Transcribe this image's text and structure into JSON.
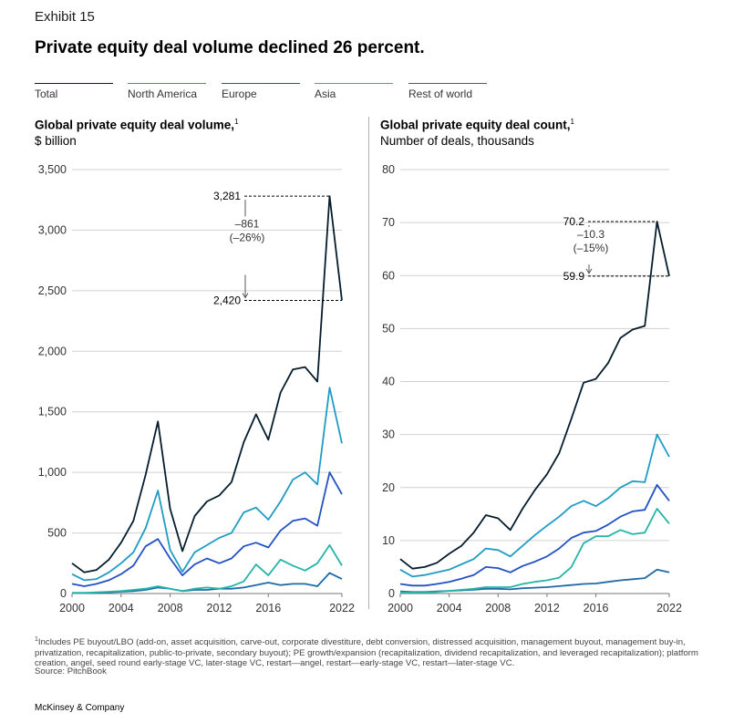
{
  "header": {
    "exhibit": "Exhibit 15",
    "title": "Private equity deal volume declined 26 percent."
  },
  "legend": [
    {
      "label": "Total",
      "color": "#051c2c"
    },
    {
      "label": "North America",
      "color": "#1f9cc4"
    },
    {
      "label": "Europe",
      "color": "#2251c4"
    },
    {
      "label": "Asia",
      "color": "#25b5a8"
    },
    {
      "label": "Rest of world",
      "color": "#1f6aa6"
    }
  ],
  "chart_data": [
    {
      "type": "line",
      "title": "Global private equity deal volume,",
      "title_note": "1",
      "ylabel": "$ billion",
      "ylim": [
        0,
        3500
      ],
      "yticks": [
        "0",
        "500",
        "1,000",
        "1,500",
        "2,000",
        "2,500",
        "3,000",
        "3,500"
      ],
      "xticks": [
        "2000",
        "2004",
        "2008",
        "2012",
        "2016",
        "2022"
      ],
      "x": [
        2000,
        2001,
        2002,
        2003,
        2004,
        2005,
        2006,
        2007,
        2008,
        2009,
        2010,
        2011,
        2012,
        2013,
        2014,
        2015,
        2016,
        2017,
        2018,
        2019,
        2020,
        2021,
        2022
      ],
      "series": [
        {
          "name": "Total",
          "values": [
            250,
            175,
            195,
            280,
            420,
            600,
            980,
            1420,
            700,
            350,
            640,
            760,
            810,
            920,
            1250,
            1480,
            1270,
            1660,
            1850,
            1870,
            1750,
            3281,
            2420
          ]
        },
        {
          "name": "North America",
          "values": [
            160,
            110,
            120,
            175,
            250,
            340,
            540,
            850,
            360,
            180,
            340,
            400,
            460,
            500,
            670,
            710,
            610,
            760,
            940,
            1000,
            900,
            1700,
            1240
          ]
        },
        {
          "name": "Europe",
          "values": [
            80,
            60,
            80,
            110,
            160,
            230,
            390,
            450,
            290,
            150,
            240,
            290,
            250,
            290,
            390,
            420,
            380,
            520,
            600,
            620,
            560,
            1000,
            820
          ]
        },
        {
          "name": "Asia",
          "values": [
            5,
            5,
            10,
            15,
            20,
            30,
            40,
            60,
            40,
            20,
            40,
            50,
            40,
            60,
            100,
            240,
            150,
            280,
            230,
            190,
            250,
            400,
            230
          ]
        },
        {
          "name": "Rest of world",
          "values": [
            5,
            5,
            5,
            10,
            15,
            20,
            30,
            50,
            40,
            20,
            30,
            30,
            40,
            40,
            50,
            70,
            90,
            70,
            80,
            80,
            60,
            170,
            120
          ]
        }
      ],
      "annotation": {
        "high_label": "3,281",
        "low_label": "2,420",
        "change": "–861",
        "change_pct": "(–26%)",
        "high": 3281,
        "low": 2420
      }
    },
    {
      "type": "line",
      "title": "Global private equity deal count,",
      "title_note": "1",
      "ylabel": "Number of deals, thousands",
      "ylim": [
        0,
        80
      ],
      "yticks": [
        "0",
        "10",
        "20",
        "30",
        "40",
        "50",
        "60",
        "70",
        "80"
      ],
      "xticks": [
        "2000",
        "2004",
        "2008",
        "2012",
        "2016",
        "2022"
      ],
      "x": [
        2000,
        2001,
        2002,
        2003,
        2004,
        2005,
        2006,
        2007,
        2008,
        2009,
        2010,
        2011,
        2012,
        2013,
        2014,
        2015,
        2016,
        2017,
        2018,
        2019,
        2020,
        2021,
        2022
      ],
      "series": [
        {
          "name": "Total",
          "values": [
            6.5,
            4.7,
            5.0,
            5.8,
            7.5,
            9.0,
            11.5,
            14.8,
            14.2,
            12.0,
            16.0,
            19.5,
            22.5,
            26.5,
            33.0,
            39.8,
            40.5,
            43.5,
            48.2,
            49.8,
            50.5,
            70.2,
            59.9
          ]
        },
        {
          "name": "North America",
          "values": [
            4.5,
            3.2,
            3.5,
            4.0,
            4.5,
            5.5,
            6.5,
            8.5,
            8.2,
            7.0,
            9.0,
            11.0,
            12.8,
            14.5,
            16.5,
            17.5,
            16.5,
            18.0,
            20.0,
            21.2,
            21.0,
            30.0,
            25.8
          ]
        },
        {
          "name": "Europe",
          "values": [
            1.8,
            1.5,
            1.5,
            1.8,
            2.2,
            2.8,
            3.5,
            5.0,
            4.8,
            4.0,
            5.2,
            6.0,
            7.0,
            8.5,
            10.5,
            11.5,
            11.8,
            13.0,
            14.5,
            15.5,
            15.8,
            20.5,
            17.5
          ]
        },
        {
          "name": "Asia",
          "values": [
            0.2,
            0.2,
            0.2,
            0.3,
            0.5,
            0.7,
            0.9,
            1.2,
            1.2,
            1.2,
            1.8,
            2.2,
            2.5,
            3.0,
            5.0,
            9.5,
            10.8,
            10.8,
            12.0,
            11.2,
            11.5,
            16.0,
            13.2
          ]
        },
        {
          "name": "Rest of world",
          "values": [
            0.4,
            0.3,
            0.3,
            0.4,
            0.5,
            0.6,
            0.7,
            0.9,
            0.9,
            0.8,
            1.0,
            1.1,
            1.2,
            1.4,
            1.6,
            1.8,
            1.9,
            2.2,
            2.5,
            2.7,
            2.9,
            4.5,
            4.0
          ]
        }
      ],
      "annotation": {
        "high_label": "70.2",
        "low_label": "59.9",
        "change": "–10.3",
        "change_pct": "(–15%)",
        "high": 70.2,
        "low": 59.9
      }
    }
  ],
  "footnote": "Includes PE buyout/LBO (add-on, asset acquisition, carve-out, corporate divestiture, debt conversion, distressed acquisition, management buyout, management buy-in, privatization, recapitalization, public-to-private, secondary buyout); PE growth/expansion (recapitalization, dividend recapitalization, and leveraged recapitalization); platform creation, angel, seed round early-stage VC, later-stage VC, restart—angel, restart—early-stage VC, restart—later-stage VC.",
  "footnote_marker": "1",
  "source": "Source: PitchBook",
  "brand": "McKinsey & Company"
}
